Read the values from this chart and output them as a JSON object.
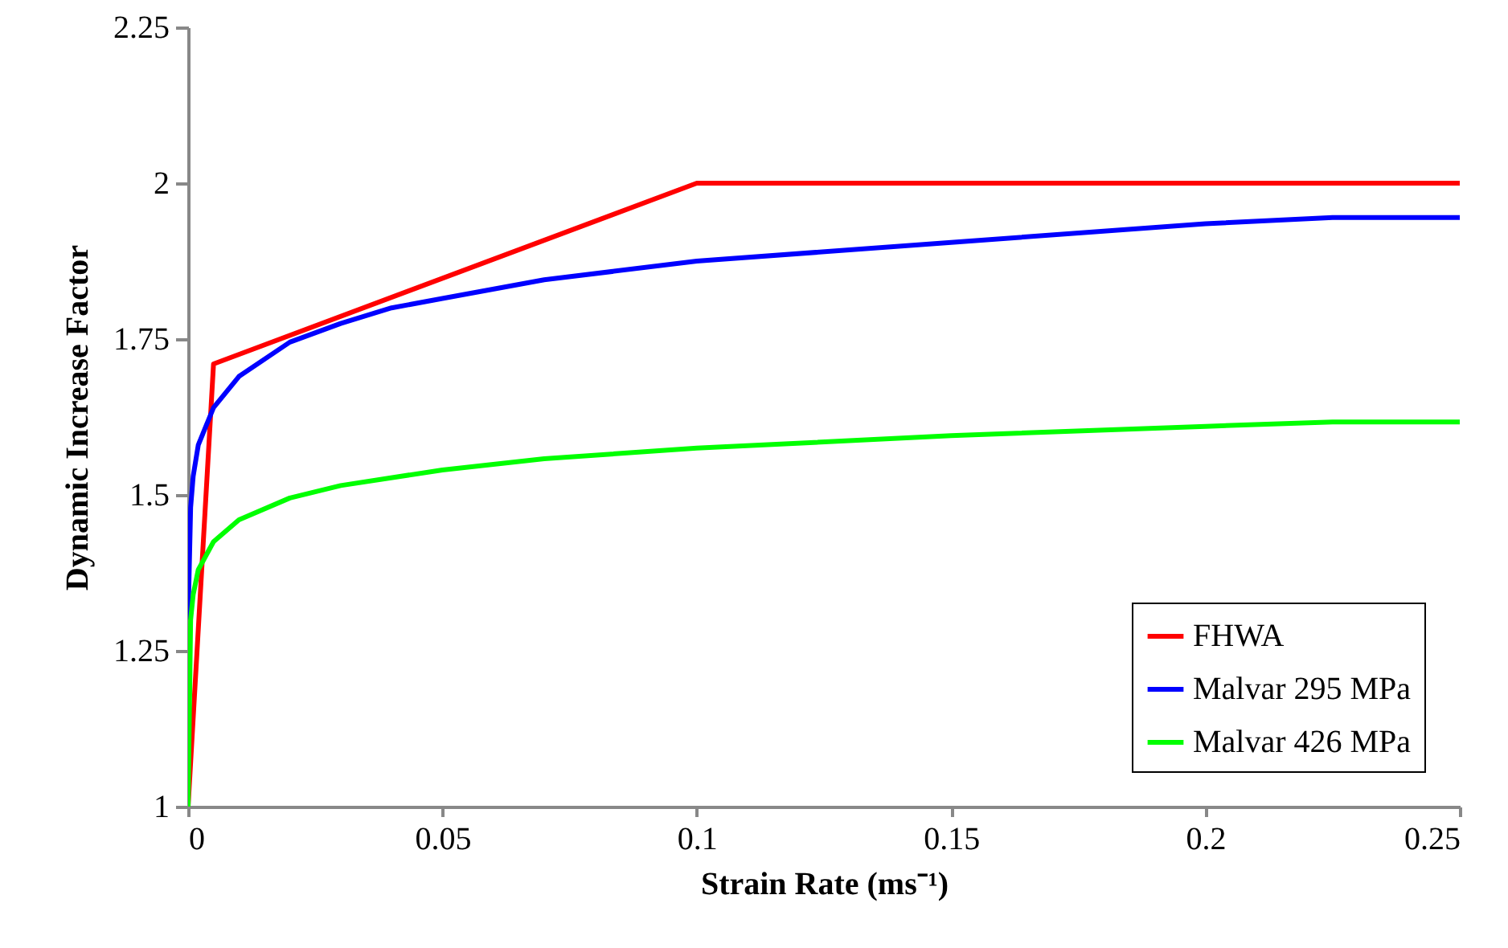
{
  "chart_data": {
    "type": "line",
    "xlabel": "Strain Rate (ms⁻¹)",
    "ylabel": "Dynamic Increase Factor",
    "xlim": [
      0,
      0.25
    ],
    "xticks": [
      0,
      0.05,
      0.1,
      0.15,
      0.2,
      0.25
    ],
    "ylim": [
      1,
      2.25
    ],
    "yticks": [
      1,
      1.25,
      1.5,
      1.75,
      2,
      2.25
    ],
    "grid": false,
    "legend": "bottom right",
    "marker": "none",
    "line_style": "solid",
    "series": [
      {
        "name": "FHWA",
        "color": "#ff0000",
        "x": [
          0,
          0.005,
          0.1,
          0.25
        ],
        "values": [
          1,
          1.71,
          2,
          2
        ]
      },
      {
        "name": "Malvar 295 MPa",
        "color": "#0000ff",
        "x": [
          0,
          0.0005,
          0.001,
          0.002,
          0.005,
          0.01,
          0.02,
          0.03,
          0.04,
          0.05,
          0.07,
          0.1,
          0.15,
          0.2,
          0.225,
          0.25
        ],
        "values": [
          1.3,
          1.48,
          1.53,
          1.58,
          1.64,
          1.69,
          1.745,
          1.775,
          1.8,
          1.815,
          1.845,
          1.875,
          1.905,
          1.935,
          1.945,
          1.945
        ]
      },
      {
        "name": "Malvar 426 MPa",
        "color": "#00ff00",
        "x": [
          0,
          0.0005,
          0.001,
          0.002,
          0.005,
          0.01,
          0.02,
          0.03,
          0.05,
          0.07,
          0.1,
          0.15,
          0.2,
          0.225,
          0.25
        ],
        "values": [
          1,
          1.3,
          1.34,
          1.38,
          1.425,
          1.46,
          1.495,
          1.515,
          1.54,
          1.558,
          1.575,
          1.595,
          1.61,
          1.617,
          1.617
        ]
      }
    ]
  }
}
